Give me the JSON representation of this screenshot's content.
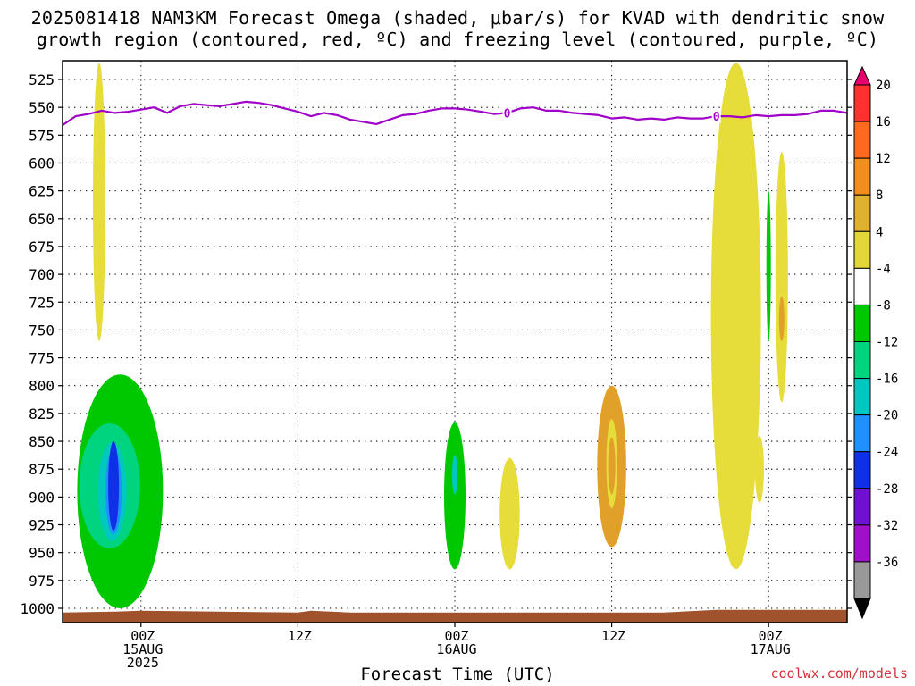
{
  "title_line1": "2025081418 NAM3KM Forecast Omega (shaded, μbar/s) for KVAD with dendritic snow",
  "title_line2": "growth region (contoured, red, ºC) and freezing level (contoured, purple, ºC)",
  "xlabel": "Forecast Time (UTC)",
  "credit": "coolwx.com/models",
  "chart_data": {
    "type": "time-height contour",
    "title": "2025081418 NAM3KM Forecast Omega (shaded, μbar/s) for KVAD with dendritic snow growth region (contoured, red, ºC) and freezing level (contoured, purple, ºC)",
    "xlabel": "Forecast Time (UTC)",
    "ylabel": "",
    "y_axis": {
      "scale": "pressure (hPa), inverted",
      "range": [
        1010,
        510
      ],
      "ticks": [
        525,
        550,
        575,
        600,
        625,
        650,
        675,
        700,
        725,
        750,
        775,
        800,
        825,
        850,
        875,
        900,
        925,
        950,
        975,
        1000
      ]
    },
    "x_axis": {
      "range_hours": [
        -6,
        54
      ],
      "ticks": [
        {
          "h": 0,
          "lines": [
            "00Z",
            "15AUG",
            "2025"
          ]
        },
        {
          "h": 12,
          "lines": [
            "12Z"
          ]
        },
        {
          "h": 24,
          "lines": [
            "00Z",
            "16AUG"
          ]
        },
        {
          "h": 36,
          "lines": [
            "12Z"
          ]
        },
        {
          "h": 48,
          "lines": [
            "00Z",
            "17AUG"
          ]
        }
      ]
    },
    "grid": true,
    "colorbar": {
      "levels": [
        20,
        16,
        12,
        8,
        4,
        -4,
        -8,
        -12,
        -16,
        -20,
        -24,
        -28,
        -32,
        -36
      ],
      "colors": [
        "#e8006e",
        "#ff3030",
        "#ff6a20",
        "#f28d1f",
        "#e0b030",
        "#e3d63a",
        "#ffffff",
        "#00c800",
        "#00d47f",
        "#00c8c0",
        "#2090ff",
        "#1030e8",
        "#7010d0",
        "#a010c8",
        "#999999",
        "#000000"
      ]
    },
    "freezing_level": {
      "label": "0",
      "color": "#a000c8",
      "points": [
        [
          -6,
          566
        ],
        [
          -5,
          558
        ],
        [
          -4,
          556
        ],
        [
          -3,
          553
        ],
        [
          -2,
          555
        ],
        [
          -1,
          554
        ],
        [
          0,
          552
        ],
        [
          1,
          550
        ],
        [
          2,
          555
        ],
        [
          3,
          549
        ],
        [
          4,
          547
        ],
        [
          5,
          548
        ],
        [
          6,
          549
        ],
        [
          7,
          547
        ],
        [
          8,
          545
        ],
        [
          9,
          546
        ],
        [
          10,
          548
        ],
        [
          11,
          551
        ],
        [
          12,
          554
        ],
        [
          13,
          558
        ],
        [
          14,
          555
        ],
        [
          15,
          557
        ],
        [
          16,
          561
        ],
        [
          17,
          563
        ],
        [
          18,
          565
        ],
        [
          19,
          561
        ],
        [
          20,
          557
        ],
        [
          21,
          556
        ],
        [
          22,
          553
        ],
        [
          23,
          551
        ],
        [
          24,
          551
        ],
        [
          25,
          552
        ],
        [
          26,
          554
        ],
        [
          27,
          556
        ],
        [
          28,
          555
        ],
        [
          29,
          551
        ],
        [
          30,
          550
        ],
        [
          31,
          553
        ],
        [
          32,
          553
        ],
        [
          33,
          555
        ],
        [
          34,
          556
        ],
        [
          35,
          557
        ],
        [
          36,
          560
        ],
        [
          37,
          559
        ],
        [
          38,
          561
        ],
        [
          39,
          560
        ],
        [
          40,
          561
        ],
        [
          41,
          559
        ],
        [
          42,
          560
        ],
        [
          43,
          560
        ],
        [
          44,
          558
        ],
        [
          45,
          558
        ],
        [
          46,
          559
        ],
        [
          47,
          557
        ],
        [
          48,
          558
        ],
        [
          49,
          557
        ],
        [
          50,
          557
        ],
        [
          51,
          556
        ],
        [
          52,
          553
        ],
        [
          53,
          553
        ],
        [
          54,
          555
        ]
      ],
      "labels_at_h": [
        28,
        44
      ]
    },
    "omega_features": [
      {
        "value": 4,
        "range": "4 to 8",
        "time_h": -3.2,
        "p_top": 510,
        "p_bottom": 760
      },
      {
        "value": -8,
        "range": "-8 to -4",
        "time_h": -1.6,
        "p_top": 790,
        "p_bottom": 1000
      },
      {
        "value": -24,
        "range": "-24 to -20",
        "time_h": -2.1,
        "p_top": 850,
        "p_bottom": 930
      },
      {
        "value": -8,
        "range": "-8 to -4",
        "time_h": 24.0,
        "p_top": 833,
        "p_bottom": 965
      },
      {
        "value": 4,
        "range": "4 to 8",
        "time_h": 28.2,
        "p_top": 865,
        "p_bottom": 965
      },
      {
        "value": 8,
        "range": "8 to 12",
        "time_h": 36.0,
        "p_top": 800,
        "p_bottom": 945
      },
      {
        "value": 4,
        "range": "4 to 8",
        "time_h": 45.5,
        "p_top": 510,
        "p_bottom": 965
      },
      {
        "value": -8,
        "range": "-8 to -4",
        "time_h": 48.0,
        "p_top": 625,
        "p_bottom": 760
      },
      {
        "value": 4,
        "range": "4 to 8",
        "time_h": 49.0,
        "p_top": 590,
        "p_bottom": 815
      },
      {
        "value": 4,
        "range": "4 to 8",
        "time_h": 47.3,
        "p_top": 845,
        "p_bottom": 905
      }
    ],
    "terrain": {
      "color": "#a0522d",
      "p_top": 1003
    }
  }
}
